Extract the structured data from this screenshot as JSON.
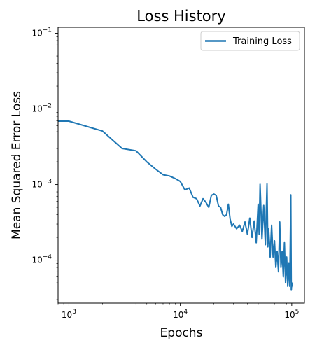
{
  "chart_data": {
    "type": "line",
    "title": "Loss History",
    "xlabel": "Epochs",
    "ylabel": "Mean Squared Error Loss",
    "xscale": "log",
    "yscale": "log",
    "xlim": [
      800,
      130000
    ],
    "ylim": [
      2.7e-05,
      0.12
    ],
    "grid": false,
    "legend": {
      "placement": "top-right"
    },
    "x_ticks": [
      {
        "base": "10",
        "exp": "3",
        "value": 1000
      },
      {
        "base": "10",
        "exp": "4",
        "value": 10000
      },
      {
        "base": "10",
        "exp": "5",
        "value": 100000
      }
    ],
    "y_ticks": [
      {
        "base": "10",
        "exp": "−4",
        "value": 0.0001
      },
      {
        "base": "10",
        "exp": "−3",
        "value": 0.001
      },
      {
        "base": "10",
        "exp": "−2",
        "value": 0.01
      },
      {
        "base": "10",
        "exp": "−1",
        "value": 0.1
      }
    ],
    "series": [
      {
        "name": "Training Loss",
        "color": "#1f77b4",
        "x": [
          800,
          1000,
          2000,
          3000,
          4000,
          5000,
          6000,
          7000,
          8000,
          9000,
          10000,
          11000,
          12000,
          13000,
          14000,
          15000,
          16000,
          17000,
          18000,
          19000,
          20000,
          21000,
          22000,
          23000,
          24000,
          25000,
          26000,
          27000,
          28000,
          29000,
          30000,
          32000,
          34000,
          36000,
          38000,
          40000,
          42000,
          44000,
          46000,
          48000,
          50000,
          51000,
          52000,
          54000,
          56000,
          58000,
          60000,
          61000,
          62000,
          64000,
          66000,
          68000,
          70000,
          72000,
          74000,
          76000,
          78000,
          80000,
          82000,
          84000,
          86000,
          88000,
          90000,
          92000,
          94000,
          96000,
          98000,
          99000,
          100000,
          101000
        ],
        "values": [
          0.0069,
          0.0069,
          0.0051,
          0.003,
          0.0028,
          0.002,
          0.0016,
          0.00135,
          0.0013,
          0.0012,
          0.0011,
          0.00085,
          0.0009,
          0.00068,
          0.00065,
          0.00052,
          0.00065,
          0.00058,
          0.0005,
          0.00072,
          0.00075,
          0.00072,
          0.00052,
          0.0005,
          0.0004,
          0.00038,
          0.0004,
          0.00055,
          0.00035,
          0.00028,
          0.0003,
          0.00026,
          0.00029,
          0.00024,
          0.00032,
          0.00022,
          0.00036,
          0.0002,
          0.00033,
          0.00017,
          0.00055,
          0.00022,
          0.00101,
          0.00019,
          0.00053,
          0.00016,
          0.00102,
          0.00015,
          0.00026,
          0.00011,
          0.00029,
          0.00011,
          0.00018,
          8e-05,
          0.00013,
          7e-05,
          0.00032,
          8e-05,
          0.00013,
          6e-05,
          0.00017,
          5e-05,
          0.00011,
          4.5e-05,
          9e-05,
          4.5e-05,
          0.00073,
          4e-05,
          5e-05,
          4.5e-05
        ]
      }
    ]
  }
}
